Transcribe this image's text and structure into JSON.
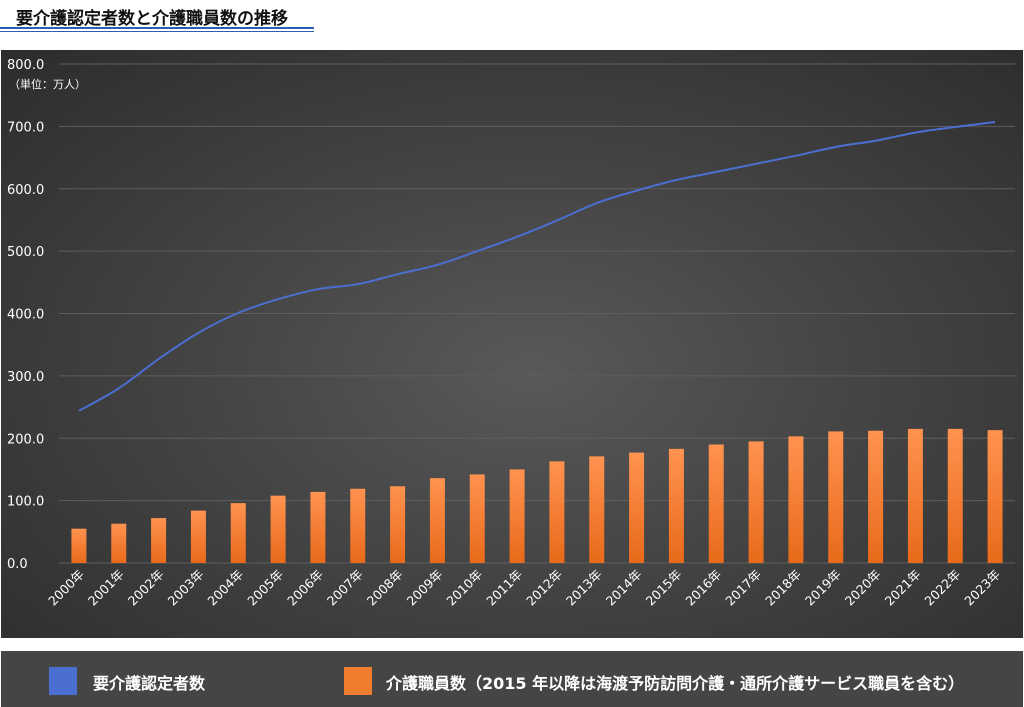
{
  "page": {
    "title": "要介護認定者数と介護職員数の推移"
  },
  "chart_data": {
    "type": "bar+line",
    "unit_label": "（単位：万人）",
    "ylim": [
      0,
      800
    ],
    "yticks": [
      "0.0",
      "100.0",
      "200.0",
      "300.0",
      "400.0",
      "500.0",
      "600.0",
      "700.0",
      "800.0"
    ],
    "grid": true,
    "legend_position": "bottom",
    "categories": [
      "2000年",
      "2001年",
      "2002年",
      "2003年",
      "2004年",
      "2005年",
      "2006年",
      "2007年",
      "2008年",
      "2009年",
      "2010年",
      "2011年",
      "2012年",
      "2013年",
      "2014年",
      "2015年",
      "2016年",
      "2017年",
      "2018年",
      "2019年",
      "2020年",
      "2021年",
      "2022年",
      "2023年"
    ],
    "series": [
      {
        "name": "要介護認定者数",
        "type": "line",
        "color": "#4a6fd0",
        "values": [
          244,
          280,
          327,
          369,
          401,
          423,
          439,
          447,
          463,
          478,
          500,
          523,
          549,
          577,
          597,
          614,
          627,
          640,
          653,
          667,
          677,
          690,
          699,
          707
        ]
      },
      {
        "name": "介護職員数（2015 年以降は海渡予防訪問介護・通所介護サービス職員を含む）",
        "type": "bar",
        "color": "#f07c2e",
        "values": [
          55,
          63,
          72,
          84,
          96,
          108,
          114,
          119,
          123,
          136,
          142,
          150,
          163,
          171,
          177,
          183,
          190,
          195,
          203,
          211,
          212,
          215,
          215,
          213
        ]
      }
    ]
  }
}
